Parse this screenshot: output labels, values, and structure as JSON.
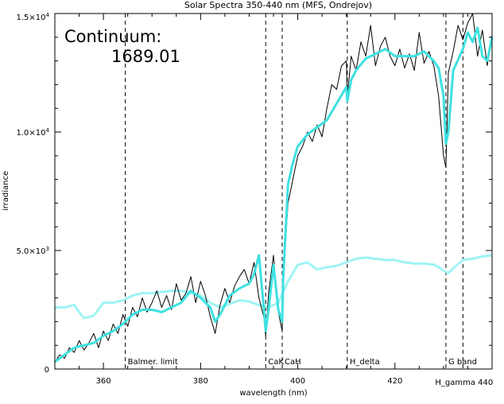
{
  "chart_data": {
    "type": "line",
    "title": "Solar Spectra 350-440 nm (MFS, Ondrejov)",
    "xlabel": "wavelength (nm)",
    "ylabel": "irradiance",
    "xlim": [
      350,
      440
    ],
    "ylim": [
      0,
      15000
    ],
    "x_ticks": [
      {
        "value": 360,
        "label": "360"
      },
      {
        "value": 380,
        "label": "380"
      },
      {
        "value": 400,
        "label": "400"
      },
      {
        "value": 420,
        "label": "420"
      }
    ],
    "y_ticks": [
      {
        "value": 0,
        "label": "0",
        "sup": ""
      },
      {
        "value": 5000,
        "label": "5.0×10",
        "sup": "3"
      },
      {
        "value": 10000,
        "label": "1.0×10",
        "sup": "4"
      },
      {
        "value": 15000,
        "label": "1.5×10",
        "sup": "4"
      }
    ],
    "annotation_label": "Continuum:",
    "annotation_value": "1689.01",
    "markers": [
      {
        "x": 364.5,
        "label": "Balmer. limit"
      },
      {
        "x": 393.4,
        "label": "CaK"
      },
      {
        "x": 396.8,
        "label": "CaH"
      },
      {
        "x": 410.2,
        "label": "H_delta"
      },
      {
        "x": 430.5,
        "label": "G band"
      },
      {
        "x": 434.0,
        "label": "H_gamma 440"
      }
    ],
    "colors": {
      "spectrum": "#000000",
      "smoothed": "#3ee0e0",
      "continuum": "#9ff4f4"
    },
    "series": [
      {
        "style": "spectrum",
        "x": [
          350,
          351,
          352,
          353,
          354,
          355,
          356,
          357,
          358,
          359,
          360,
          361,
          362,
          363,
          364,
          365,
          366,
          367,
          368,
          369,
          370,
          371,
          372,
          373,
          374,
          375,
          376,
          377,
          378,
          379,
          380,
          381,
          382,
          383,
          384,
          385,
          386,
          387,
          388,
          389,
          390,
          391,
          392,
          393,
          393.4,
          394,
          395,
          396,
          396.8,
          397,
          398,
          399,
          400,
          401,
          402,
          403,
          404,
          405,
          406,
          407,
          408,
          409,
          410,
          410.2,
          411,
          412,
          413,
          414,
          415,
          416,
          417,
          418,
          419,
          420,
          421,
          422,
          423,
          424,
          425,
          426,
          427,
          428,
          429,
          430,
          430.5,
          431,
          432,
          433,
          434,
          435,
          436,
          437,
          438,
          439,
          440
        ],
        "y": [
          300,
          600,
          450,
          900,
          700,
          1200,
          800,
          1100,
          1500,
          900,
          1600,
          1200,
          1900,
          1500,
          2300,
          1800,
          2600,
          2200,
          3000,
          2400,
          2800,
          3300,
          2600,
          3100,
          2500,
          3600,
          2900,
          3200,
          3900,
          2800,
          3700,
          3100,
          2200,
          1500,
          2700,
          3400,
          2800,
          3500,
          3900,
          4200,
          3600,
          4500,
          3000,
          2200,
          1400,
          3200,
          4800,
          2400,
          1600,
          3700,
          7000,
          8000,
          9000,
          9400,
          10000,
          9600,
          10300,
          9800,
          11000,
          12000,
          11800,
          12800,
          13000,
          11500,
          13200,
          12600,
          13800,
          13200,
          14500,
          12800,
          13600,
          14000,
          13200,
          12800,
          13500,
          12700,
          13300,
          12600,
          14200,
          12900,
          13400,
          12800,
          11500,
          9000,
          8500,
          12500,
          13400,
          14500,
          13900,
          14600,
          15000,
          13200,
          14300,
          12800,
          14100
        ]
      },
      {
        "style": "smoothed",
        "x": [
          350,
          352,
          354,
          356,
          358,
          360,
          362,
          364,
          366,
          368,
          370,
          372,
          374,
          376,
          378,
          380,
          382,
          383,
          384,
          386,
          388,
          390,
          391,
          392,
          393,
          393.4,
          394,
          395,
          396,
          396.8,
          397,
          398,
          399,
          400,
          402,
          404,
          406,
          408,
          410,
          410.2,
          411,
          412,
          414,
          416,
          418,
          420,
          422,
          424,
          426,
          428,
          429,
          430,
          430.5,
          431,
          432,
          434,
          435,
          436,
          437,
          438,
          439,
          440
        ],
        "y": [
          300,
          600,
          900,
          1000,
          1100,
          1400,
          1600,
          1900,
          2300,
          2500,
          2500,
          2400,
          2600,
          2800,
          3300,
          3000,
          2600,
          2000,
          2300,
          3100,
          3400,
          3600,
          4000,
          4800,
          2600,
          1600,
          2500,
          4400,
          2500,
          2000,
          3800,
          7800,
          8700,
          9400,
          9900,
          10200,
          10500,
          11200,
          11900,
          11300,
          12200,
          12600,
          13100,
          13300,
          13500,
          13200,
          13200,
          13200,
          13400,
          13000,
          12700,
          11500,
          9500,
          10000,
          12600,
          13500,
          14200,
          13800,
          14400,
          13200,
          13000,
          14000
        ]
      },
      {
        "style": "continuum",
        "x": [
          350,
          352,
          354,
          355,
          356,
          358,
          360,
          362,
          364,
          366,
          368,
          370,
          372,
          374,
          376,
          378,
          380,
          382,
          384,
          386,
          388,
          390,
          392,
          394,
          396,
          398,
          400,
          402,
          404,
          406,
          408,
          410,
          412,
          414,
          416,
          418,
          420,
          422,
          424,
          426,
          428,
          429,
          430,
          431,
          432,
          434,
          436,
          438,
          440
        ],
        "y": [
          2600,
          2600,
          2700,
          2400,
          2150,
          2250,
          2800,
          2800,
          2900,
          3100,
          3200,
          3200,
          3250,
          3300,
          3300,
          3200,
          3100,
          2800,
          2600,
          2750,
          2900,
          2850,
          2700,
          2600,
          2800,
          3700,
          4400,
          4500,
          4200,
          4300,
          4350,
          4500,
          4650,
          4700,
          4650,
          4600,
          4600,
          4500,
          4450,
          4450,
          4400,
          4300,
          4150,
          4050,
          4250,
          4600,
          4650,
          4750,
          4800
        ]
      }
    ]
  }
}
